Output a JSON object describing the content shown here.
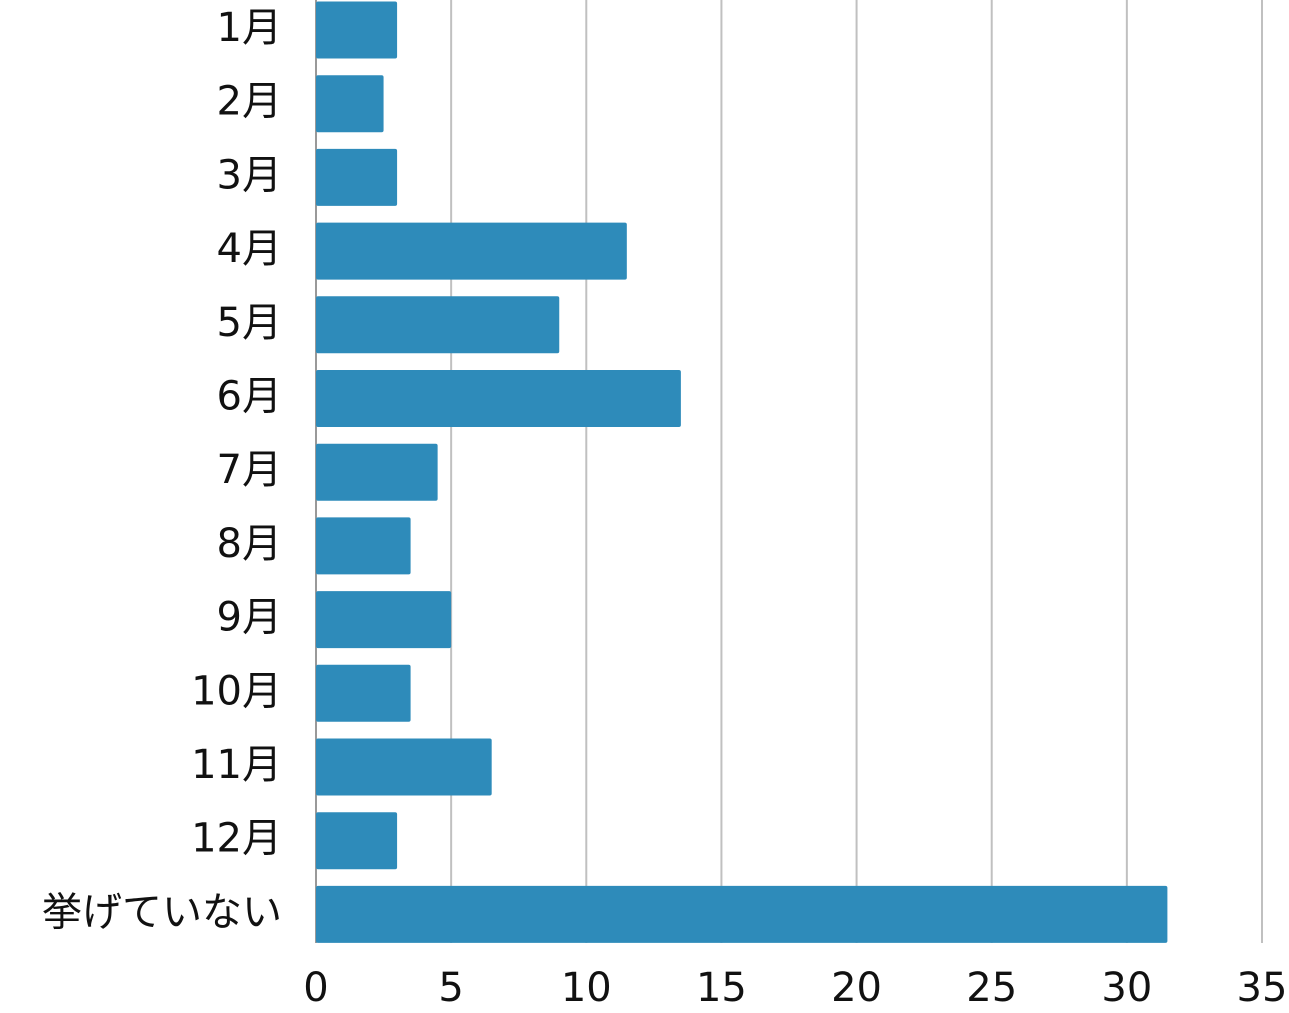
{
  "chart_data": {
    "type": "bar",
    "orientation": "horizontal",
    "categories": [
      "1月",
      "2月",
      "3月",
      "4月",
      "5月",
      "6月",
      "7月",
      "8月",
      "9月",
      "10月",
      "11月",
      "12月",
      "挙げていない"
    ],
    "values": [
      3,
      2.5,
      3,
      11.5,
      9,
      13.5,
      4.5,
      3.5,
      5,
      3.5,
      6.5,
      3,
      31.5
    ],
    "color": "#2e8bba",
    "xlim": [
      0,
      35
    ],
    "xticks": [
      0,
      5,
      10,
      15,
      20,
      25,
      30,
      35
    ],
    "grid": true
  }
}
